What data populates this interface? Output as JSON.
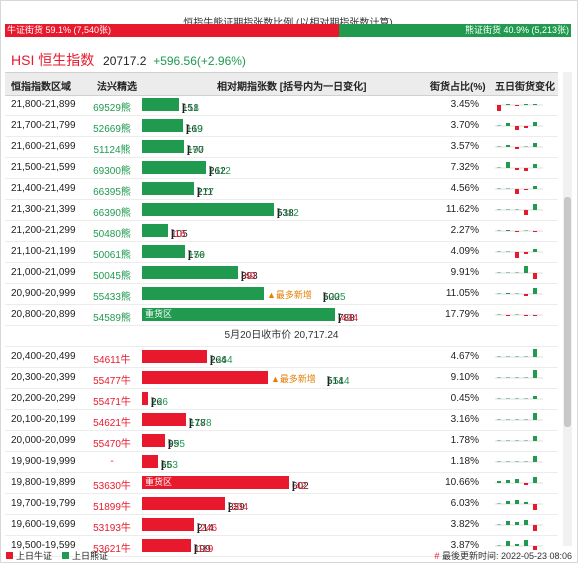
{
  "title": "恒指牛熊证期指张数比例 (以相对期指张数计算)",
  "ratio": {
    "bull_label": "牛证街货 59.1% (7,540张)",
    "bull_pct": 59.1,
    "bear_label": "熊证街货 40.9% (5,213张)",
    "bear_pct": 40.9
  },
  "index": {
    "name": "HSI 恒生指数",
    "value": "20717.2",
    "change": "+596.56(+2.96%)"
  },
  "headers": {
    "range": "恒指指数区域",
    "code": "法兴精选",
    "contracts": "相对期指张数 [括号内为一日变化]",
    "pct": "街货占比(%)",
    "trend": "五日街货变化"
  },
  "divider_label": "5月20日收市价 20,717.24",
  "max_contracts": 788,
  "colors": {
    "bull": "#e8192c",
    "bear": "#1f9a4f"
  },
  "rows_bear": [
    {
      "range": "21,800-21,899",
      "code": "69529熊",
      "contracts": "151",
      "change": "+18",
      "pct": "3.45%",
      "value": 151,
      "trend": [
        -6,
        1,
        -1,
        1,
        1
      ]
    },
    {
      "range": "21,700-21,799",
      "code": "52669熊",
      "contracts": "169",
      "change": "+19",
      "pct": "3.70%",
      "value": 169,
      "trend": [
        0,
        3,
        -4,
        -2,
        4
      ]
    },
    {
      "range": "21,600-21,699",
      "code": "51124熊",
      "contracts": "170",
      "change": "+97",
      "pct": "3.57%",
      "value": 170,
      "trend": [
        0,
        2,
        -2,
        0,
        4
      ]
    },
    {
      "range": "21,500-21,599",
      "code": "69300熊",
      "contracts": "262",
      "change": "+112",
      "pct": "7.32%",
      "value": 262,
      "trend": [
        0,
        6,
        -2,
        -3,
        4
      ]
    },
    {
      "range": "21,400-21,499",
      "code": "66395熊",
      "contracts": "211",
      "change": "+77",
      "pct": "4.56%",
      "value": 211,
      "trend": [
        0,
        0,
        -5,
        -1,
        3
      ]
    },
    {
      "range": "21,300-21,399",
      "code": "66390熊",
      "contracts": "538",
      "change": "+112",
      "pct": "11.62%",
      "value": 538,
      "trend": [
        0,
        0,
        0,
        -5,
        6
      ]
    },
    {
      "range": "21,200-21,299",
      "code": "50480熊",
      "contracts": "105",
      "change": "-16",
      "pct": "2.27%",
      "value": 105,
      "trend": [
        0,
        1,
        -1,
        0,
        -1
      ]
    },
    {
      "range": "21,100-21,199",
      "code": "50061熊",
      "contracts": "176",
      "change": "+59",
      "pct": "4.09%",
      "value": 176,
      "trend": [
        0,
        0,
        -6,
        -2,
        3
      ]
    },
    {
      "range": "21,000-21,099",
      "code": "50045熊",
      "contracts": "393",
      "change": "-49",
      "pct": "9.91%",
      "value": 393,
      "trend": [
        0,
        0,
        0,
        7,
        -6
      ]
    },
    {
      "range": "20,900-20,999",
      "code": "55433熊",
      "contracts": "500",
      "change": "+225",
      "pct": "11.05%",
      "value": 500,
      "tag": "▲最多新增",
      "trend": [
        0,
        1,
        0,
        -2,
        6
      ]
    },
    {
      "range": "20,800-20,899",
      "code": "54589熊",
      "contracts": "788",
      "change": "-434",
      "pct": "17.79%",
      "value": 788,
      "zone": "重货区",
      "trend": [
        0,
        -1,
        0,
        -1,
        -1
      ]
    }
  ],
  "rows_bull": [
    {
      "range": "20,400-20,499",
      "code": "54611牛",
      "contracts": "264",
      "change": "+264",
      "pct": "4.67%",
      "value": 264,
      "trend": [
        0,
        0,
        0,
        0,
        8
      ]
    },
    {
      "range": "20,300-20,399",
      "code": "55477牛",
      "contracts": "514",
      "change": "+514",
      "pct": "9.10%",
      "value": 514,
      "tag": "▲最多新增",
      "trend": [
        0,
        0,
        0,
        0,
        8
      ]
    },
    {
      "range": "20,200-20,299",
      "code": "55471牛",
      "contracts": "26",
      "change": "+26",
      "pct": "0.45%",
      "value": 26,
      "trend": [
        0,
        0,
        0,
        0,
        3
      ]
    },
    {
      "range": "20,100-20,199",
      "code": "54621牛",
      "contracts": "178",
      "change": "+178",
      "pct": "3.16%",
      "value": 178,
      "trend": [
        0,
        0,
        0,
        0,
        7
      ]
    },
    {
      "range": "20,000-20,099",
      "code": "55470牛",
      "contracts": "95",
      "change": "+95",
      "pct": "1.78%",
      "value": 95,
      "trend": [
        0,
        0,
        0,
        0,
        5
      ]
    },
    {
      "range": "19,900-19,999",
      "code": "-",
      "contracts": "65",
      "change": "+63",
      "pct": "1.18%",
      "value": 65,
      "trend": [
        0,
        0,
        0,
        0,
        6
      ]
    },
    {
      "range": "19,800-19,899",
      "code": "53630牛",
      "contracts": "602",
      "change": "-42",
      "pct": "10.66%",
      "value": 602,
      "zone": "重货区",
      "trend": [
        2,
        3,
        4,
        -2,
        6
      ]
    },
    {
      "range": "19,700-19,799",
      "code": "51899牛",
      "contracts": "339",
      "change": "-304",
      "pct": "6.03%",
      "value": 339,
      "trend": [
        0,
        3,
        4,
        2,
        -6
      ]
    },
    {
      "range": "19,600-19,699",
      "code": "53193牛",
      "contracts": "214",
      "change": "-246",
      "pct": "3.82%",
      "value": 214,
      "trend": [
        0,
        4,
        3,
        5,
        -6
      ]
    },
    {
      "range": "19,500-19,599",
      "code": "53621牛",
      "contracts": "199",
      "change": "-119",
      "pct": "3.87%",
      "value": 199,
      "trend": [
        0,
        5,
        2,
        6,
        -4
      ]
    }
  ],
  "legend": {
    "bull": "上日牛证",
    "bear": "上日熊证"
  },
  "updated": {
    "prefix": "#",
    "text": "最後更新时间: 2022-05-23 08:06"
  }
}
